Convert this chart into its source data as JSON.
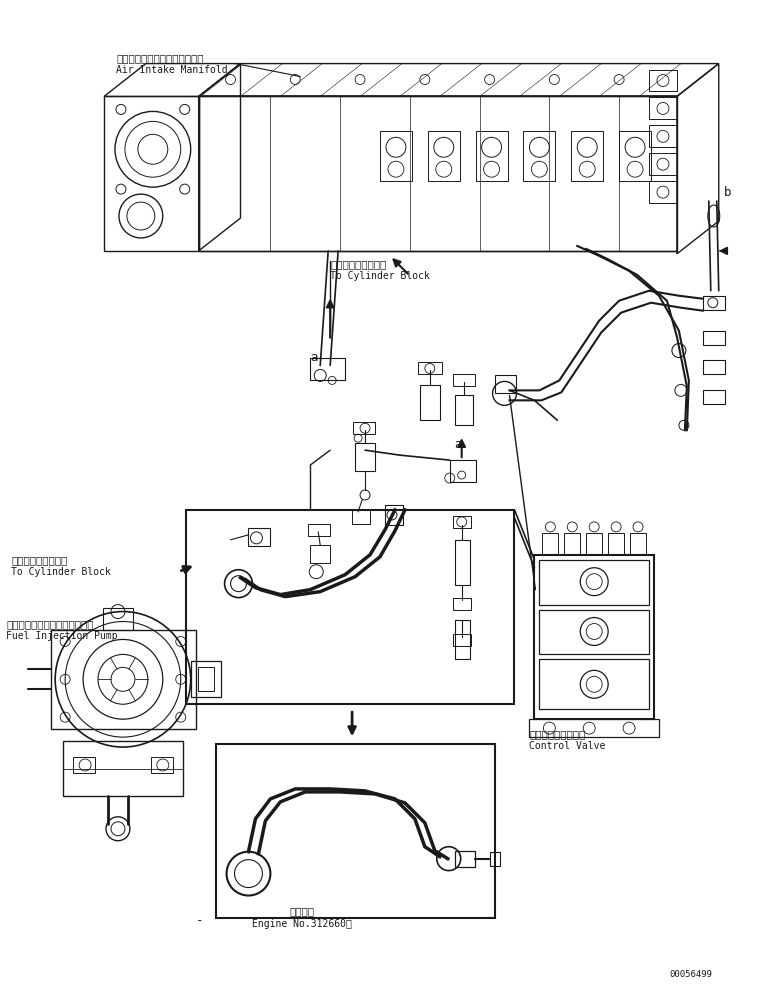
{
  "bg_color": "#ffffff",
  "line_color": "#1a1a1a",
  "labels": {
    "air_intake_jp": "エアーインテークマニホールド",
    "air_intake_en": "Air Intake Manifold",
    "cylinder_block_jp1": "シリンダブロックへ",
    "cylinder_block_en1": "To Cylinder Block",
    "cylinder_block_jp2": "シリンダブロックへ",
    "cylinder_block_en2": "To Cylinder Block",
    "fuel_pump_jp": "フェルインジェクションポンプ",
    "fuel_pump_en": "Fuel Injection Pump",
    "control_valve_jp": "コントロールバルブ",
    "control_valve_en": "Control Valve",
    "engine_no_jp": "適用号機",
    "engine_no_en": "Engine No.312660～",
    "doc_no": "00056499",
    "label_a1": "a",
    "label_a2": "a",
    "label_b": "b",
    "label_minus": "-"
  },
  "fig_width": 7.57,
  "fig_height": 9.88,
  "dpi": 100
}
